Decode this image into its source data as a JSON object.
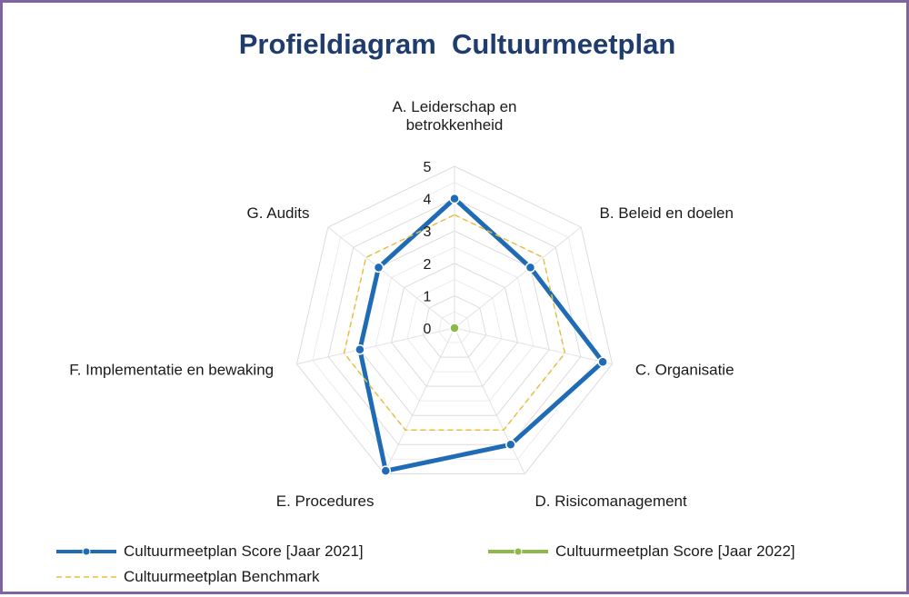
{
  "chart_data": {
    "type": "radar",
    "title": "Profieldiagram  Cultuurmeetplan",
    "axes": [
      [
        "A. Leiderschap en",
        "betrokkenheid"
      ],
      [
        "B. Beleid en doelen"
      ],
      [
        "C. Organisatie"
      ],
      [
        "D. Risicomanagement"
      ],
      [
        "E. Procedures"
      ],
      [
        "F. Implementatie en bewaking"
      ],
      [
        "G. Audits"
      ]
    ],
    "rlim": [
      0,
      5
    ],
    "ticks": [
      "0",
      "1",
      "2",
      "3",
      "4",
      "5"
    ],
    "grid": true,
    "legend_position": "bottom",
    "series": [
      {
        "name": "Cultuurmeetplan Score [Jaar 2021]",
        "values": [
          4.0,
          3.0,
          4.7,
          4.0,
          4.9,
          3.0,
          3.0
        ],
        "color": "#1f6bb5",
        "style": "solid-markers"
      },
      {
        "name": "Cultuurmeetplan Score [Jaar 2022]",
        "values": [
          0,
          0,
          0,
          0,
          0,
          0,
          0
        ],
        "color": "#8db84a",
        "style": "solid-markers"
      },
      {
        "name": "Cultuurmeetplan Benchmark",
        "values": [
          3.5,
          3.5,
          3.5,
          3.5,
          3.5,
          3.5,
          3.5
        ],
        "color": "#e8bf3c",
        "style": "dashed"
      }
    ]
  }
}
